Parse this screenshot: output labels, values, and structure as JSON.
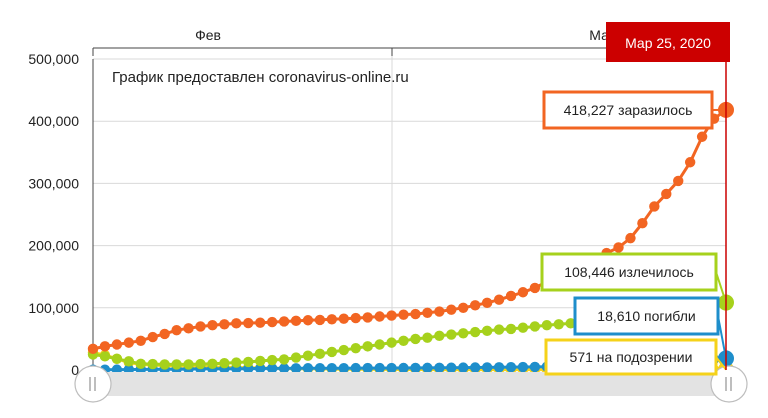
{
  "chart_data": {
    "type": "line",
    "credit": "График предоставлен coronavirus-online.ru",
    "x_labels": [
      "Фев",
      "Мар"
    ],
    "selected_date": "Мар 25, 2020",
    "ylim": [
      0,
      500000
    ],
    "yticks": [
      {
        "value": 0,
        "label": "0"
      },
      {
        "value": 100000,
        "label": "100,000"
      },
      {
        "value": 200000,
        "label": "200,000"
      },
      {
        "value": 300000,
        "label": "300,000"
      },
      {
        "value": 400000,
        "label": "400,000"
      },
      {
        "value": 500000,
        "label": "500,000"
      }
    ],
    "grid": true,
    "colors": {
      "infected": "#f26522",
      "recovered": "#a6d11c",
      "deaths": "#1e8ecb",
      "suspected": "#f5d21a",
      "date_badge": "#cc0000"
    },
    "series": [
      {
        "key": "infected",
        "label": "418,227 заразилось",
        "values": [
          34000,
          38000,
          41000,
          44000,
          47000,
          53000,
          58000,
          64000,
          67000,
          70000,
          72000,
          73500,
          75000,
          75500,
          76000,
          77000,
          78000,
          79000,
          80000,
          80500,
          81500,
          82500,
          83500,
          84500,
          86000,
          87500,
          89000,
          90000,
          92000,
          94000,
          97000,
          100000,
          104000,
          108000,
          113000,
          119000,
          125000,
          132000,
          142000,
          151000,
          160000,
          168000,
          177000,
          188000,
          197000,
          212000,
          236000,
          263000,
          283000,
          304000,
          334000,
          375000,
          404000,
          418227
        ]
      },
      {
        "key": "recovered",
        "label": "108,446 излечилось",
        "values": [
          25000,
          22000,
          18000,
          14000,
          10000,
          9500,
          9000,
          9000,
          9000,
          9500,
          10000,
          11000,
          12000,
          13000,
          14500,
          16000,
          17000,
          20000,
          23000,
          26000,
          29000,
          32000,
          35000,
          38000,
          41000,
          44000,
          47000,
          50000,
          52000,
          55000,
          57000,
          59000,
          61000,
          63000,
          65000,
          66000,
          68000,
          70000,
          72000,
          73500,
          75000,
          76500,
          78000,
          79500,
          81000,
          83000,
          85000,
          87000,
          89000,
          91000,
          94000,
          98000,
          104000,
          108446
        ]
      },
      {
        "key": "deaths",
        "label": "18,610 погибли",
        "values": [
          500,
          500,
          600,
          700,
          900,
          1000,
          1100,
          1300,
          1500,
          1700,
          1900,
          2000,
          2100,
          2300,
          2400,
          2500,
          2600,
          2700,
          2800,
          2850,
          2900,
          2950,
          3000,
          3050,
          3100,
          3150,
          3200,
          3300,
          3400,
          3500,
          3600,
          3800,
          4000,
          4200,
          4400,
          4600,
          4800,
          5000,
          5300,
          5600,
          5900,
          6300,
          6800,
          7400,
          8000,
          8800,
          9800,
          10800,
          11900,
          13200,
          14500,
          16000,
          17300,
          18610
        ]
      },
      {
        "key": "suspected",
        "label": "571 на подозрении",
        "values": [
          28000,
          24000,
          18000,
          12000,
          9000,
          8000,
          7000,
          6500,
          6000,
          5500,
          5000,
          4500,
          4000,
          3600,
          3200,
          2800,
          2400,
          2100,
          1900,
          1700,
          1500,
          1300,
          1200,
          1100,
          1000,
          900,
          850,
          800,
          750,
          700,
          680,
          660,
          650,
          640,
          630,
          620,
          610,
          600,
          600,
          600,
          595,
          590,
          590,
          585,
          585,
          580,
          580,
          580,
          575,
          575,
          575,
          572,
          571,
          571
        ]
      }
    ]
  }
}
